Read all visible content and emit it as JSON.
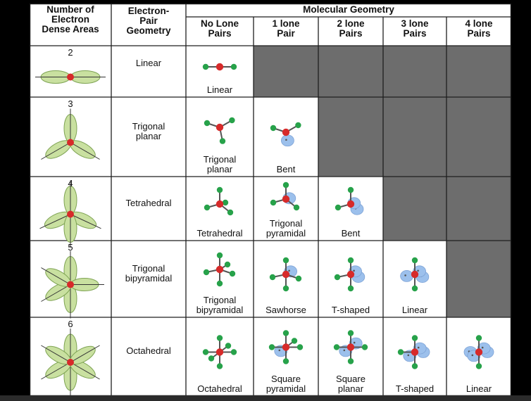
{
  "colors": {
    "grid": "#1f1f1f",
    "gray_cell": "#6d6d6d",
    "lobe_fill": "#c9e0a0",
    "lobe_stroke": "#7fa454",
    "center_atom": "#d72a2a",
    "bond_atom": "#27a24a",
    "lone_pair": "#9cc0ec"
  },
  "headers": {
    "col1": "Number of\nElectron\nDense Areas",
    "col2": "Electron-\nPair\nGeometry",
    "group": "Molecular Geometry",
    "sub": [
      "No Lone\nPairs",
      "1 lone\nPair",
      "2 lone\nPairs",
      "3 lone\nPairs",
      "4 lone\nPairs"
    ]
  },
  "rows": [
    {
      "count": "2",
      "epg": "Linear",
      "lobes": 2,
      "cells": [
        {
          "label": "Linear",
          "bonds": 2,
          "lone": 0
        },
        null,
        null,
        null,
        null
      ]
    },
    {
      "count": "3",
      "epg": "Trigonal\nplanar",
      "lobes": 3,
      "cells": [
        {
          "label": "Trigonal\nplanar",
          "bonds": 3,
          "lone": 0
        },
        {
          "label": "Bent",
          "bonds": 2,
          "lone": 1
        },
        null,
        null,
        null
      ]
    },
    {
      "count": "4",
      "epg": "Tetrahedral",
      "lobes": 4,
      "cells": [
        {
          "label": "Tetrahedral",
          "bonds": 4,
          "lone": 0
        },
        {
          "label": "Trigonal\npyramidal",
          "bonds": 3,
          "lone": 1
        },
        {
          "label": "Bent",
          "bonds": 2,
          "lone": 2
        },
        null,
        null
      ]
    },
    {
      "count": "5",
      "epg": "Trigonal\nbipyramidal",
      "lobes": 5,
      "cells": [
        {
          "label": "Trigonal\nbipyramidal",
          "bonds": 5,
          "lone": 0
        },
        {
          "label": "Sawhorse",
          "bonds": 4,
          "lone": 1
        },
        {
          "label": "T-shaped",
          "bonds": 3,
          "lone": 2
        },
        {
          "label": "Linear",
          "bonds": 2,
          "lone": 3
        },
        null
      ]
    },
    {
      "count": "6",
      "epg": "Octahedral",
      "lobes": 6,
      "cells": [
        {
          "label": "Octahedral",
          "bonds": 6,
          "lone": 0
        },
        {
          "label": "Square\npyramidal",
          "bonds": 5,
          "lone": 1
        },
        {
          "label": "Square\nplanar",
          "bonds": 4,
          "lone": 2
        },
        {
          "label": "T-shaped",
          "bonds": 3,
          "lone": 3
        },
        {
          "label": "Linear",
          "bonds": 2,
          "lone": 4
        }
      ]
    }
  ]
}
